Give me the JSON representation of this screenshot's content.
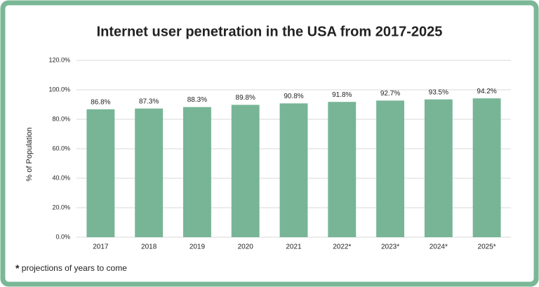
{
  "chart_data": {
    "type": "bar",
    "title": "Internet user penetration in the USA from 2017-2025",
    "ylabel": "% of Population",
    "categories": [
      "2017",
      "2018",
      "2019",
      "2020",
      "2021",
      "2022*",
      "2023*",
      "2024*",
      "2025*"
    ],
    "values": [
      86.8,
      87.3,
      88.3,
      89.8,
      90.8,
      91.8,
      92.7,
      93.5,
      94.2
    ],
    "value_labels": [
      "86.8%",
      "87.3%",
      "88.3%",
      "89.8%",
      "90.8%",
      "91.8%",
      "92.7%",
      "93.5%",
      "94.2%"
    ],
    "color": "#77b596",
    "ylim": [
      0,
      120
    ],
    "yticks": [
      {
        "value": 0,
        "label": "0.0%"
      },
      {
        "value": 20,
        "label": "20.0%"
      },
      {
        "value": 40,
        "label": "40.0%"
      },
      {
        "value": 60,
        "label": "60.0%"
      },
      {
        "value": 80,
        "label": "80.0%"
      },
      {
        "value": 100,
        "label": "100.0%"
      },
      {
        "value": 120,
        "label": "120.0%"
      }
    ],
    "grid": true,
    "footnote": {
      "marker": "*",
      "text": "projections of years to come"
    }
  }
}
